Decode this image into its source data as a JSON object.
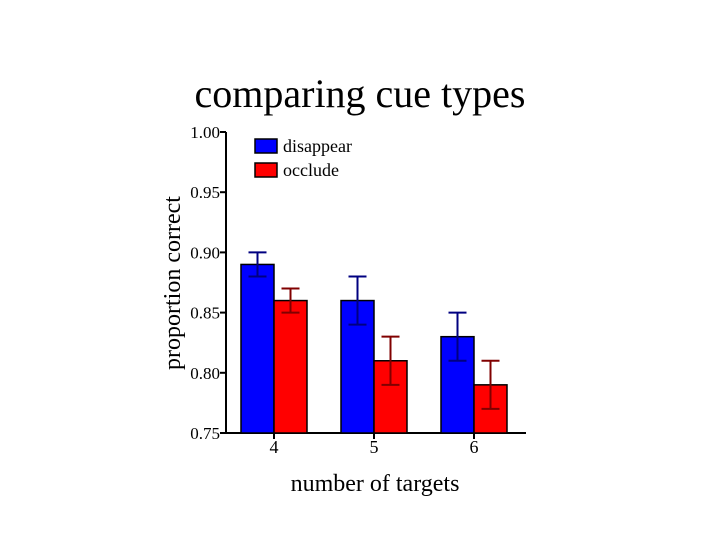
{
  "slide": {
    "title": "comparing cue types"
  },
  "chart_data": {
    "type": "bar",
    "title": "comparing cue types",
    "xlabel": "number of targets",
    "ylabel": "proportion correct",
    "categories": [
      "4",
      "5",
      "6"
    ],
    "ylim": [
      0.75,
      1.0
    ],
    "yticks": [
      "0.75",
      "0.80",
      "0.85",
      "0.90",
      "0.95",
      "1.00"
    ],
    "grid": false,
    "legend_position": "top-left",
    "series": [
      {
        "name": "disappear",
        "color": "#0000ff",
        "values": [
          0.89,
          0.86,
          0.83
        ],
        "errors": [
          0.01,
          0.02,
          0.02
        ]
      },
      {
        "name": "occlude",
        "color": "#ff0000",
        "values": [
          0.86,
          0.81,
          0.79
        ],
        "errors": [
          0.01,
          0.02,
          0.02
        ]
      }
    ]
  }
}
